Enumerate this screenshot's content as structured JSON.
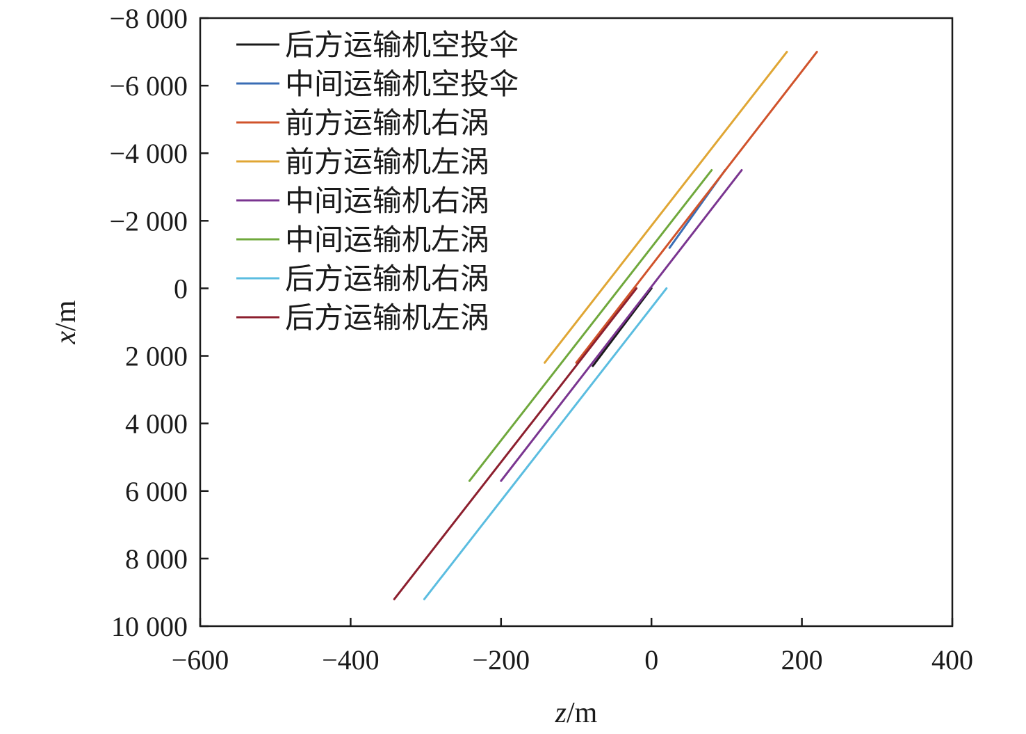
{
  "chart_data": {
    "type": "line",
    "xlabel": {
      "italic": "z",
      "unit": "/m"
    },
    "ylabel": {
      "italic": "x",
      "unit": "/m"
    },
    "xlim": [
      -600,
      400
    ],
    "ylim": [
      10000,
      -8000
    ],
    "y_inverted": true,
    "xticks": [
      -600,
      -400,
      -200,
      0,
      200,
      400
    ],
    "yticks": [
      -8000,
      -6000,
      -4000,
      -2000,
      0,
      2000,
      4000,
      6000,
      8000,
      10000
    ],
    "xtick_labels": [
      "−600",
      "−400",
      "−200",
      "0",
      "200",
      "400"
    ],
    "ytick_labels": [
      "−8 000",
      "−6 000",
      "−4 000",
      "−2 000",
      "0",
      "2 000",
      "4 000",
      "6 000",
      "8 000",
      "10 000"
    ],
    "grid": false,
    "legend_position": "top-left",
    "series": [
      {
        "name": "后方运输机空投伞",
        "color": "#1a1a1a",
        "points": [
          [
            0,
            0
          ],
          [
            -78,
            2300
          ]
        ]
      },
      {
        "name": "中间运输机空投伞",
        "color": "#3a6db5",
        "points": [
          [
            98,
            -3500
          ],
          [
            24,
            -1200
          ]
        ]
      },
      {
        "name": "前方运输机右涡",
        "color": "#d0532b",
        "points": [
          [
            220,
            -7000
          ],
          [
            -100,
            2200
          ]
        ]
      },
      {
        "name": "前方运输机左涡",
        "color": "#e0a634",
        "points": [
          [
            180,
            -7000
          ],
          [
            -142,
            2200
          ]
        ]
      },
      {
        "name": "中间运输机右涡",
        "color": "#7a3590",
        "points": [
          [
            120,
            -3500
          ],
          [
            -200,
            5700
          ]
        ]
      },
      {
        "name": "中间运输机左涡",
        "color": "#6fa83c",
        "points": [
          [
            80,
            -3500
          ],
          [
            -242,
            5700
          ]
        ]
      },
      {
        "name": "后方运输机右涡",
        "color": "#5bbde0",
        "points": [
          [
            20,
            0
          ],
          [
            -302,
            9200
          ]
        ]
      },
      {
        "name": "后方运输机左涡",
        "color": "#8c1f2e",
        "points": [
          [
            -20,
            0
          ],
          [
            -342,
            9200
          ]
        ]
      }
    ]
  }
}
